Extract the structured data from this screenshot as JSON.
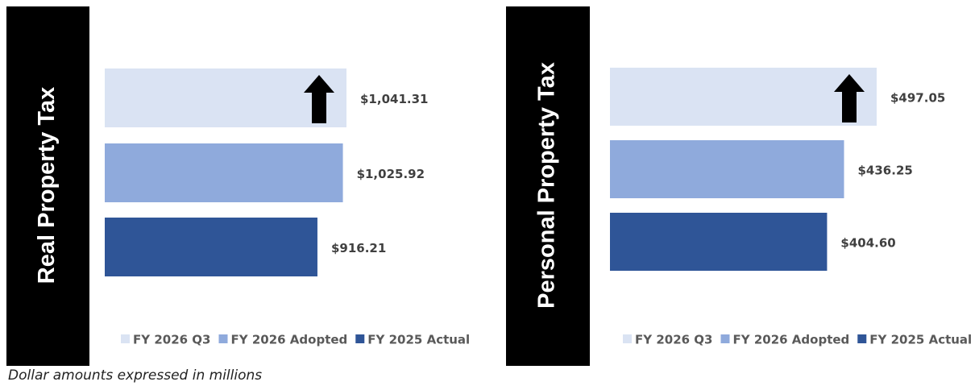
{
  "chart_data": [
    {
      "type": "bar",
      "title": "Real Property Tax",
      "series": [
        {
          "name": "FY 2026 Q3",
          "color": "#dae3f3",
          "values": [
            1041.31
          ],
          "value_labels": [
            "$1,041.31"
          ]
        },
        {
          "name": "FY 2026 Adopted",
          "color": "#8faadc",
          "values": [
            1025.92
          ],
          "value_labels": [
            "$1,025.92"
          ]
        },
        {
          "name": "FY 2025 Actual",
          "color": "#2f5597",
          "values": [
            916.21
          ],
          "value_labels": [
            "$916.21"
          ]
        }
      ]
    },
    {
      "type": "bar",
      "title": "Personal Property Tax",
      "series": [
        {
          "name": "FY 2026 Q3",
          "color": "#dae3f3",
          "values": [
            497.05
          ],
          "value_labels": [
            "$497.05"
          ]
        },
        {
          "name": "FY 2026 Adopted",
          "color": "#8faadc",
          "values": [
            436.25
          ],
          "value_labels": [
            "$436.25"
          ]
        },
        {
          "name": "FY 2025 Actual",
          "color": "#2f5597",
          "values": [
            404.6
          ],
          "value_labels": [
            "$404.60"
          ]
        }
      ]
    }
  ],
  "footnote": "Dollar amounts expressed in millions"
}
